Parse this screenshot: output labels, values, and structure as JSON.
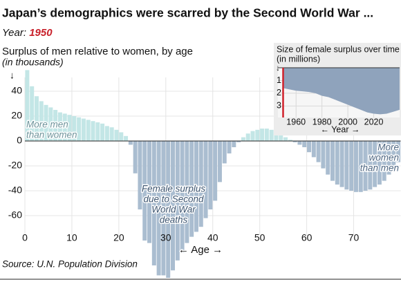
{
  "chart_data": [
    {
      "type": "bar",
      "title": "Japan’s demographics were scarred by the Second World War ...",
      "year_label": "Year:",
      "year": "1950",
      "subtitle": "Surplus of men relative to women, by age",
      "unit": "(in thousands)",
      "y_arrow": "↓",
      "x_label": "← Age →",
      "source": "Source: U.N. Population Division",
      "annotations": [
        {
          "lines": [
            "More men",
            "than women"
          ]
        },
        {
          "lines": [
            "More",
            "women",
            "than men"
          ]
        },
        {
          "lines": [
            "Female surplus",
            "due to Second",
            "World War",
            "deaths"
          ]
        }
      ],
      "categories": [
        0,
        1,
        2,
        3,
        4,
        5,
        6,
        7,
        8,
        9,
        10,
        11,
        12,
        13,
        14,
        15,
        16,
        17,
        18,
        19,
        20,
        21,
        22,
        23,
        24,
        25,
        26,
        27,
        28,
        29,
        30,
        31,
        32,
        33,
        34,
        35,
        36,
        37,
        38,
        39,
        40,
        41,
        42,
        43,
        44,
        45,
        46,
        47,
        48,
        49,
        50,
        51,
        52,
        53,
        54,
        55,
        56,
        57,
        58,
        59,
        60,
        61,
        62,
        63,
        64,
        65,
        66,
        67,
        68,
        69,
        70,
        71,
        72,
        73,
        74,
        75,
        76,
        77,
        78,
        79
      ],
      "values": [
        57,
        44,
        36,
        32,
        29,
        27,
        25,
        23,
        22,
        21,
        20,
        19,
        18,
        17,
        16,
        15,
        14,
        12,
        11,
        9,
        7,
        4,
        -3,
        -26,
        -55,
        -80,
        -82,
        -100,
        -108,
        -108,
        -110,
        -104,
        -96,
        -90,
        -82,
        -77,
        -73,
        -69,
        -62,
        -55,
        -48,
        -33,
        -18,
        -10,
        -5,
        -1,
        3,
        6,
        8,
        9,
        10,
        10,
        9,
        9,
        7,
        3,
        1,
        -1,
        -3,
        -5,
        -9,
        -13,
        -17,
        -22,
        -27,
        -32,
        -35,
        -37,
        -39,
        -40,
        -41,
        -41,
        -40,
        -39,
        -37,
        -35,
        -32,
        -27,
        -22,
        -17
      ],
      "color_positive": "#c3e6e6",
      "color_negative": "#aabdd0",
      "xlim": [
        0,
        80
      ],
      "xticks": [
        0,
        10,
        20,
        30,
        40,
        50,
        60,
        70
      ],
      "ylim": [
        -112,
        60
      ],
      "yticks": [
        40,
        20,
        0,
        -20,
        -40,
        -60
      ],
      "grid": true
    },
    {
      "type": "area",
      "title": "Size of female surplus over time",
      "unit": "(in millions)",
      "y_arrow": "↓",
      "x_label": "← Year →",
      "x": [
        1950,
        1955,
        1960,
        1965,
        1970,
        1975,
        1980,
        1985,
        1990,
        1995,
        2000,
        2005,
        2010,
        2015,
        2020,
        2025,
        2030,
        2035,
        2040
      ],
      "series": [
        {
          "color": "#8fa3bc",
          "values": [
            1.6,
            1.7,
            1.8,
            1.85,
            1.9,
            2.0,
            2.2,
            2.3,
            2.5,
            2.7,
            2.9,
            3.1,
            3.3,
            3.5,
            3.6,
            3.65,
            3.6,
            3.45,
            3.3
          ]
        }
      ],
      "marker": 1950,
      "marker_color": "#d0202a",
      "xlim": [
        1946,
        2040
      ],
      "xticks": [
        1960,
        1980,
        2000,
        2020
      ],
      "ylim": [
        0,
        3.9
      ],
      "yticks": [
        1,
        2,
        3
      ],
      "y_inverted": true,
      "grid": true
    }
  ]
}
